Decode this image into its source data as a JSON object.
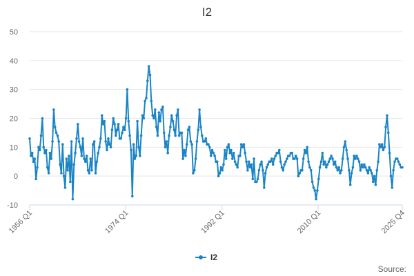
{
  "chart_data": {
    "type": "line",
    "title": "I2",
    "xlabel": "",
    "ylabel": "",
    "x_ticks": [
      "1956 Q1",
      "1974 Q1",
      "1992 Q1",
      "2010 Q1",
      "2025 Q4"
    ],
    "x_range": [
      "1956 Q1",
      "2025 Q4"
    ],
    "ylim": [
      -10,
      50
    ],
    "y_ticks": [
      -10,
      0,
      10,
      20,
      30,
      40,
      50
    ],
    "grid": true,
    "legend": "bottom-center",
    "series": [
      {
        "name": "I2",
        "color": "#1a84c5",
        "x_start": "1956 Q1",
        "x_end": "2025 Q4",
        "values": [
          13,
          7,
          8,
          5,
          6,
          -1,
          3,
          10,
          9,
          14,
          20,
          10,
          8,
          9,
          3,
          1,
          8,
          6,
          12,
          23,
          17,
          15,
          14,
          12,
          4,
          1,
          11,
          0,
          -4,
          6,
          2,
          7,
          -2,
          12,
          -8,
          4,
          8,
          13,
          18,
          12,
          10,
          7,
          13,
          6,
          5,
          7,
          2,
          1,
          6,
          2,
          11,
          12,
          1,
          5,
          8,
          10,
          13,
          21,
          18,
          19,
          12,
          9,
          13,
          11,
          10,
          16,
          20,
          18,
          14,
          16,
          18,
          13,
          13,
          15,
          17,
          16,
          20,
          30,
          19,
          14,
          9,
          -7,
          11,
          6,
          7,
          19,
          10,
          7,
          14,
          21,
          20,
          26,
          27,
          33,
          38,
          35,
          26,
          21,
          20,
          23,
          17,
          14,
          22,
          19,
          23,
          24,
          15,
          10,
          12,
          8,
          14,
          17,
          21,
          19,
          16,
          14,
          21,
          23,
          14,
          15,
          15,
          6,
          9,
          7,
          11,
          16,
          17,
          12,
          11,
          1,
          2,
          6,
          12,
          16,
          23,
          17,
          14,
          12,
          12,
          13,
          11,
          11,
          10,
          7,
          9,
          8,
          7,
          5,
          5,
          0,
          1,
          3,
          2,
          4,
          9,
          6,
          10,
          11,
          8,
          9,
          6,
          8,
          5,
          4,
          3,
          7,
          7,
          11,
          10,
          11,
          8,
          5,
          2,
          5,
          3,
          4,
          -1,
          6,
          -2,
          -2,
          -1,
          2,
          4,
          5,
          2,
          -4,
          1,
          3,
          4,
          5,
          5,
          6,
          4,
          6,
          7,
          8,
          8,
          9,
          5,
          3,
          2,
          4,
          5,
          6,
          7,
          7,
          8,
          8,
          6,
          6,
          7,
          6,
          0,
          1,
          2,
          2,
          6,
          9,
          8,
          10,
          5,
          3,
          2,
          -2,
          -4,
          -5,
          -8,
          -5,
          -1,
          3,
          5,
          8,
          4,
          5,
          3,
          4,
          5,
          6,
          7,
          6,
          4,
          5,
          3,
          2,
          3,
          1,
          2,
          6,
          10,
          12,
          9,
          6,
          2,
          -3,
          1,
          3,
          7,
          6,
          7,
          6,
          5,
          2,
          4,
          3,
          4,
          3,
          2,
          1,
          3,
          2,
          1,
          -2,
          0,
          -3,
          2,
          5,
          11,
          10,
          11,
          9,
          10,
          17,
          21,
          15,
          8,
          0,
          -4,
          2,
          5,
          6,
          6,
          5,
          4,
          3,
          3
        ]
      }
    ],
    "source_label": "Source:"
  }
}
